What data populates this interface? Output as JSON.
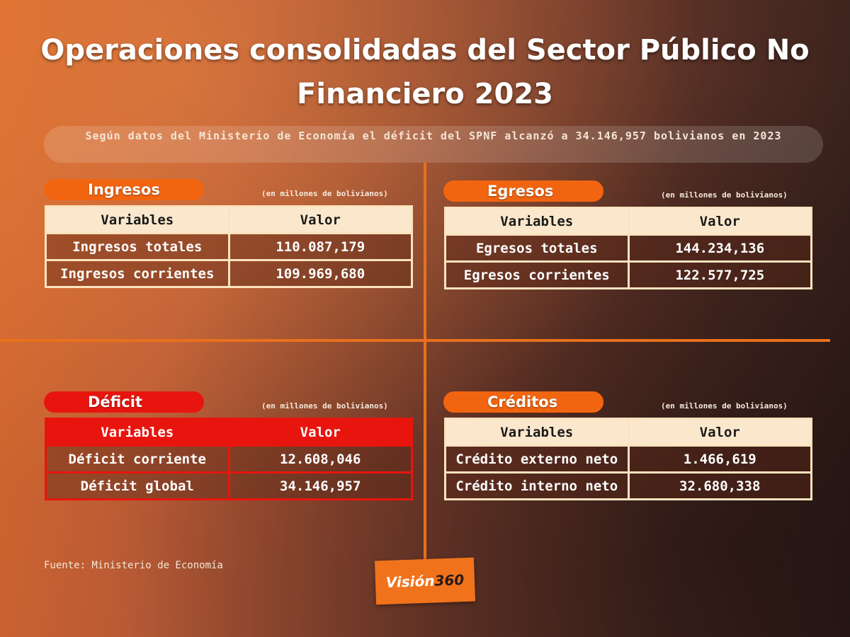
{
  "title": "Operaciones consolidadas del Sector Público No Financiero 2023",
  "title_line1": "Operaciones consolidadas del Sector Público No",
  "title_line2": "Financiero 2023",
  "subtitle": "Según datos del Ministerio de Economía el déficit del SPNF alcanzó a 34.146,957 bolivianos en 2023",
  "unit_note": "(en millones de bolivianos)",
  "header": {
    "col1": "Variables",
    "col2": "Valor"
  },
  "sections": {
    "ingresos": {
      "label": "Ingresos",
      "rows": [
        {
          "name": "Ingresos totales",
          "value": "110.087,179"
        },
        {
          "name": "Ingresos corrientes",
          "value": "109.969,680"
        }
      ]
    },
    "egresos": {
      "label": "Egresos",
      "rows": [
        {
          "name": "Egresos totales",
          "value": "144.234,136"
        },
        {
          "name": "Egresos corrientes",
          "value": "122.577,725"
        }
      ]
    },
    "deficit": {
      "label": "Déficit",
      "rows": [
        {
          "name": "Déficit corriente",
          "value": "12.608,046"
        },
        {
          "name": "Déficit global",
          "value": "34.146,957"
        }
      ]
    },
    "creditos": {
      "label": "Créditos",
      "rows": [
        {
          "name": "Crédito externo neto",
          "value": "1.466,619"
        },
        {
          "name": "Crédito interno neto",
          "value": "32.680,338"
        }
      ]
    }
  },
  "source": "Fuente: Ministerio de Economía",
  "logo": {
    "text1": "Visión",
    "text2": "360"
  },
  "colors": {
    "accent": "#f26510",
    "deficit": "#e8150f",
    "table_header": "#fbe8cc"
  }
}
